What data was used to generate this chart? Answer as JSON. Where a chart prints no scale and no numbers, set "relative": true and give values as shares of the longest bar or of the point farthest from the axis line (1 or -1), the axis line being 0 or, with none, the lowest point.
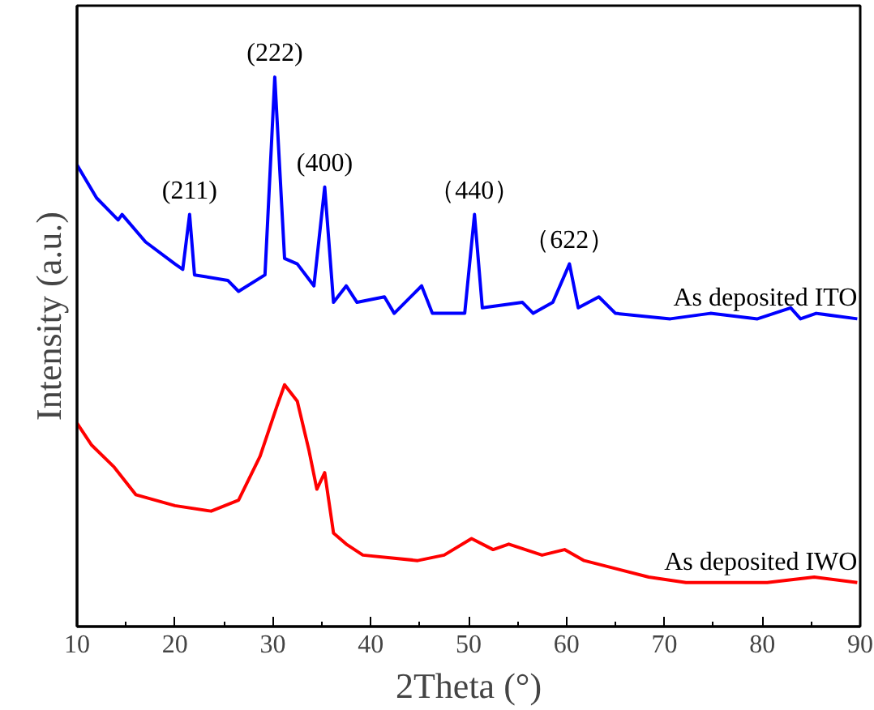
{
  "chart_data": {
    "type": "line",
    "relative": true,
    "xlabel": "2Theta (°)",
    "ylabel": "Intensity (a.u.)",
    "xlim": [
      10,
      90
    ],
    "xticks": [
      10,
      20,
      30,
      40,
      50,
      60,
      70,
      80,
      90
    ],
    "grid": false,
    "legend": false,
    "marker": "none",
    "line_style": "solid",
    "series": [
      {
        "name": "As deposited ITO",
        "color": "#0000ff",
        "x": [
          10,
          12,
          14.2,
          14.6,
          17,
          20,
          20.8,
          21.5,
          22,
          25.4,
          26.5,
          29.2,
          30.2,
          31.2,
          32.5,
          34.2,
          35.3,
          36.2,
          37.5,
          38.6,
          41.4,
          42.4,
          45.2,
          46.3,
          49.6,
          50.6,
          51.4,
          55.5,
          56.6,
          58.6,
          60.3,
          61.2,
          63.3,
          65,
          70.6,
          74.7,
          79.5,
          82.9,
          83.9,
          85.5,
          89.7
        ],
        "values": [
          0.84,
          0.78,
          0.74,
          0.75,
          0.7,
          0.66,
          0.65,
          0.75,
          0.64,
          0.63,
          0.61,
          0.64,
          1,
          0.67,
          0.66,
          0.62,
          0.8,
          0.59,
          0.62,
          0.59,
          0.6,
          0.57,
          0.62,
          0.57,
          0.57,
          0.75,
          0.58,
          0.59,
          0.57,
          0.59,
          0.66,
          0.58,
          0.6,
          0.57,
          0.56,
          0.57,
          0.56,
          0.58,
          0.56,
          0.57,
          0.56
        ]
      },
      {
        "name": "As deposited IWO",
        "color": "#ff0000",
        "x": [
          10,
          11.5,
          13.8,
          16,
          20,
          23.7,
          26.5,
          28.7,
          30.4,
          31.2,
          32.5,
          33.7,
          34.5,
          35.3,
          36.2,
          37.5,
          39.2,
          44.8,
          47.5,
          50.3,
          52.5,
          54.1,
          57.5,
          59.8,
          61.8,
          68.4,
          72.2,
          80.5,
          85.3,
          89.7
        ],
        "values": [
          0.37,
          0.33,
          0.29,
          0.24,
          0.22,
          0.21,
          0.23,
          0.31,
          0.4,
          0.44,
          0.41,
          0.32,
          0.25,
          0.28,
          0.17,
          0.15,
          0.13,
          0.12,
          0.13,
          0.16,
          0.14,
          0.15,
          0.13,
          0.14,
          0.12,
          0.09,
          0.08,
          0.08,
          0.09,
          0.08
        ]
      }
    ],
    "annotations": [
      {
        "text": "(211)",
        "x": 21.5,
        "y": 0.75
      },
      {
        "text": "(222)",
        "x": 30.2,
        "y": 1
      },
      {
        "text": "(400)",
        "x": 35.3,
        "y": 0.8
      },
      {
        "text": "（440）",
        "x": 50.6,
        "y": 0.75
      },
      {
        "text": "（622）",
        "x": 60.3,
        "y": 0.66
      }
    ]
  }
}
